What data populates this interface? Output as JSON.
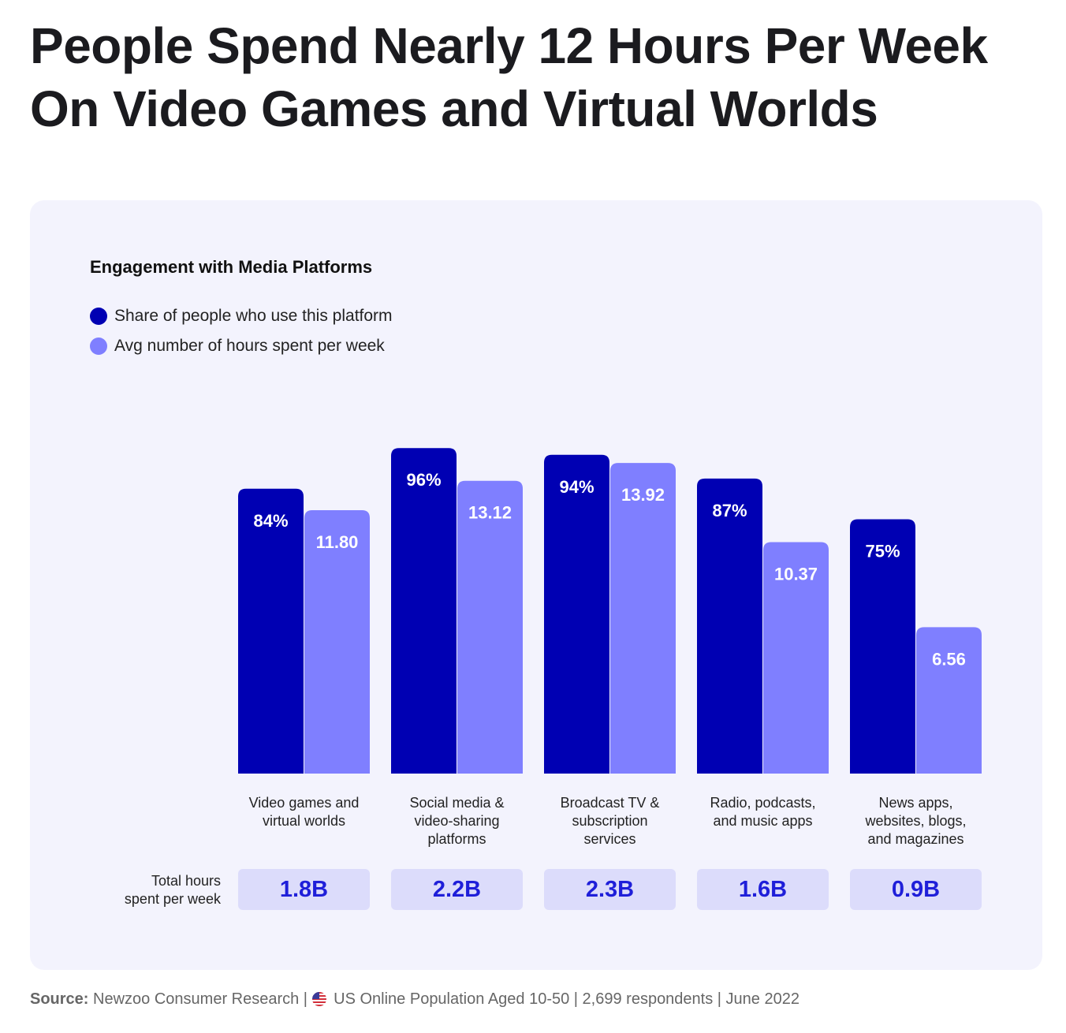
{
  "headline": "People Spend Nearly 12 Hours Per Week On Video Games and Virtual Worlds",
  "chart_data": {
    "type": "bar",
    "title": "Engagement with Media Platforms",
    "categories": [
      "Video games and\nvirtual worlds",
      "Social media &\nvideo-sharing\nplatforms",
      "Broadcast TV &\nsubscription\nservices",
      "Radio, podcasts,\nand music apps",
      "News apps,\nwebsites, blogs,\nand magazines"
    ],
    "series": [
      {
        "name": "Share of people who use this platform",
        "color": "#0000b3",
        "values": [
          84,
          96,
          94,
          87,
          75
        ],
        "labels": [
          "84%",
          "96%",
          "94%",
          "87%",
          "75%"
        ]
      },
      {
        "name": "Avg number of hours spent per week",
        "color": "#7f7fff",
        "values": [
          11.8,
          13.12,
          13.92,
          10.37,
          6.56
        ],
        "labels": [
          "11.80",
          "13.12",
          "13.92",
          "10.37",
          "6.56"
        ]
      }
    ],
    "legend_position": "top-left",
    "grid": false
  },
  "totals": {
    "label": "Total hours\nspent per week",
    "values": [
      "1.8B",
      "2.2B",
      "2.3B",
      "1.6B",
      "0.9B"
    ]
  },
  "source": {
    "label": "Source:",
    "text": "Newzoo Consumer Research |",
    "flag_icon": "us-flag-icon",
    "text2": "US Online Population Aged 10-50 | 2,699 respondents | June 2022"
  }
}
